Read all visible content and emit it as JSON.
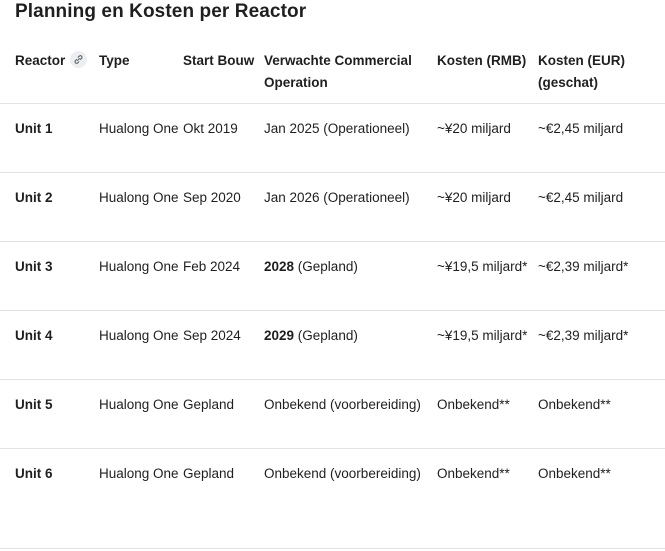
{
  "title": "Planning en Kosten per Reactor",
  "headers": {
    "reactor": "Reactor",
    "type": "Type",
    "start": "Start Bouw",
    "operation": "Verwachte Commercial Operation",
    "cost_rmb": "Kosten (RMB)",
    "cost_eur": "Kosten (EUR) (geschat)"
  },
  "link_icon": "link-icon",
  "rows": [
    {
      "reactor": "Unit 1",
      "type": "Hualong One",
      "start": "Okt 2019",
      "op_bold": "",
      "op_text": "Jan 2025 (Operationeel)",
      "rmb": "~¥20 miljard",
      "eur": "~€2,45 miljard"
    },
    {
      "reactor": "Unit 2",
      "type": "Hualong One",
      "start": "Sep 2020",
      "op_bold": "",
      "op_text": "Jan 2026 (Operationeel)",
      "rmb": "~¥20 miljard",
      "eur": "~€2,45 miljard"
    },
    {
      "reactor": "Unit 3",
      "type": "Hualong One",
      "start": "Feb 2024",
      "op_bold": "2028",
      "op_text": " (Gepland)",
      "rmb": "~¥19,5 miljard*",
      "eur": "~€2,39 miljard*"
    },
    {
      "reactor": "Unit 4",
      "type": "Hualong One",
      "start": "Sep 2024",
      "op_bold": "2029",
      "op_text": " (Gepland)",
      "rmb": "~¥19,5 miljard*",
      "eur": "~€2,39 miljard*"
    },
    {
      "reactor": "Unit 5",
      "type": "Hualong One",
      "start": "Gepland",
      "op_bold": "",
      "op_text": "Onbekend (voorbereiding)",
      "rmb": "Onbekend**",
      "eur": "Onbekend**"
    },
    {
      "reactor": "Unit 6",
      "type": "Hualong One",
      "start": "Gepland",
      "op_bold": "",
      "op_text": "Onbekend (voorbereiding)",
      "rmb": "Onbekend**",
      "eur": "Onbekend**"
    }
  ]
}
